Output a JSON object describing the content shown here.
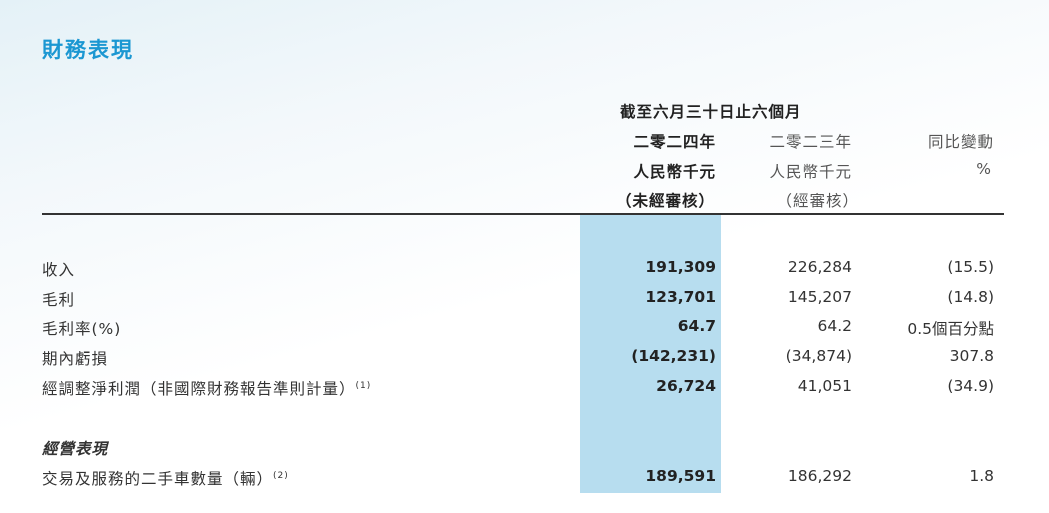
{
  "title": "財務表現",
  "header": {
    "period": "截至六月三十日止六個月",
    "col_2024": {
      "year": "二零二四年",
      "unit": "人民幣千元",
      "note": "（未經審核）"
    },
    "col_2023": {
      "year": "二零二三年",
      "unit": "人民幣千元",
      "note": "（經審核）"
    },
    "col_change": {
      "label": "同比變動",
      "unit": "%"
    }
  },
  "highlight_color": "#b7ddef",
  "accent_color": "#1b97d2",
  "rows": [
    {
      "label": "收入",
      "sup": "",
      "v2024": "191,309",
      "v2023": "226,284",
      "change": "(15.5)"
    },
    {
      "label": "毛利",
      "sup": "",
      "v2024": "123,701",
      "v2023": "145,207",
      "change": "(14.8)"
    },
    {
      "label": "毛利率(%)",
      "sup": "",
      "v2024": "64.7",
      "v2023": "64.2",
      "change": "0.5個百分點"
    },
    {
      "label": "期內虧損",
      "sup": "",
      "v2024": "(142,231)",
      "v2023": "(34,874)",
      "change": "307.8"
    },
    {
      "label": "經調整淨利潤（非國際財務報告準則計量）",
      "sup": "(1)",
      "v2024": "26,724",
      "v2023": "41,051",
      "change": "(34.9)"
    }
  ],
  "section": {
    "title": "經營表現",
    "rows": [
      {
        "label": "交易及服務的二手車數量（輛）",
        "sup": "(2)",
        "v2024": "189,591",
        "v2023": "186,292",
        "change": "1.8"
      }
    ]
  }
}
